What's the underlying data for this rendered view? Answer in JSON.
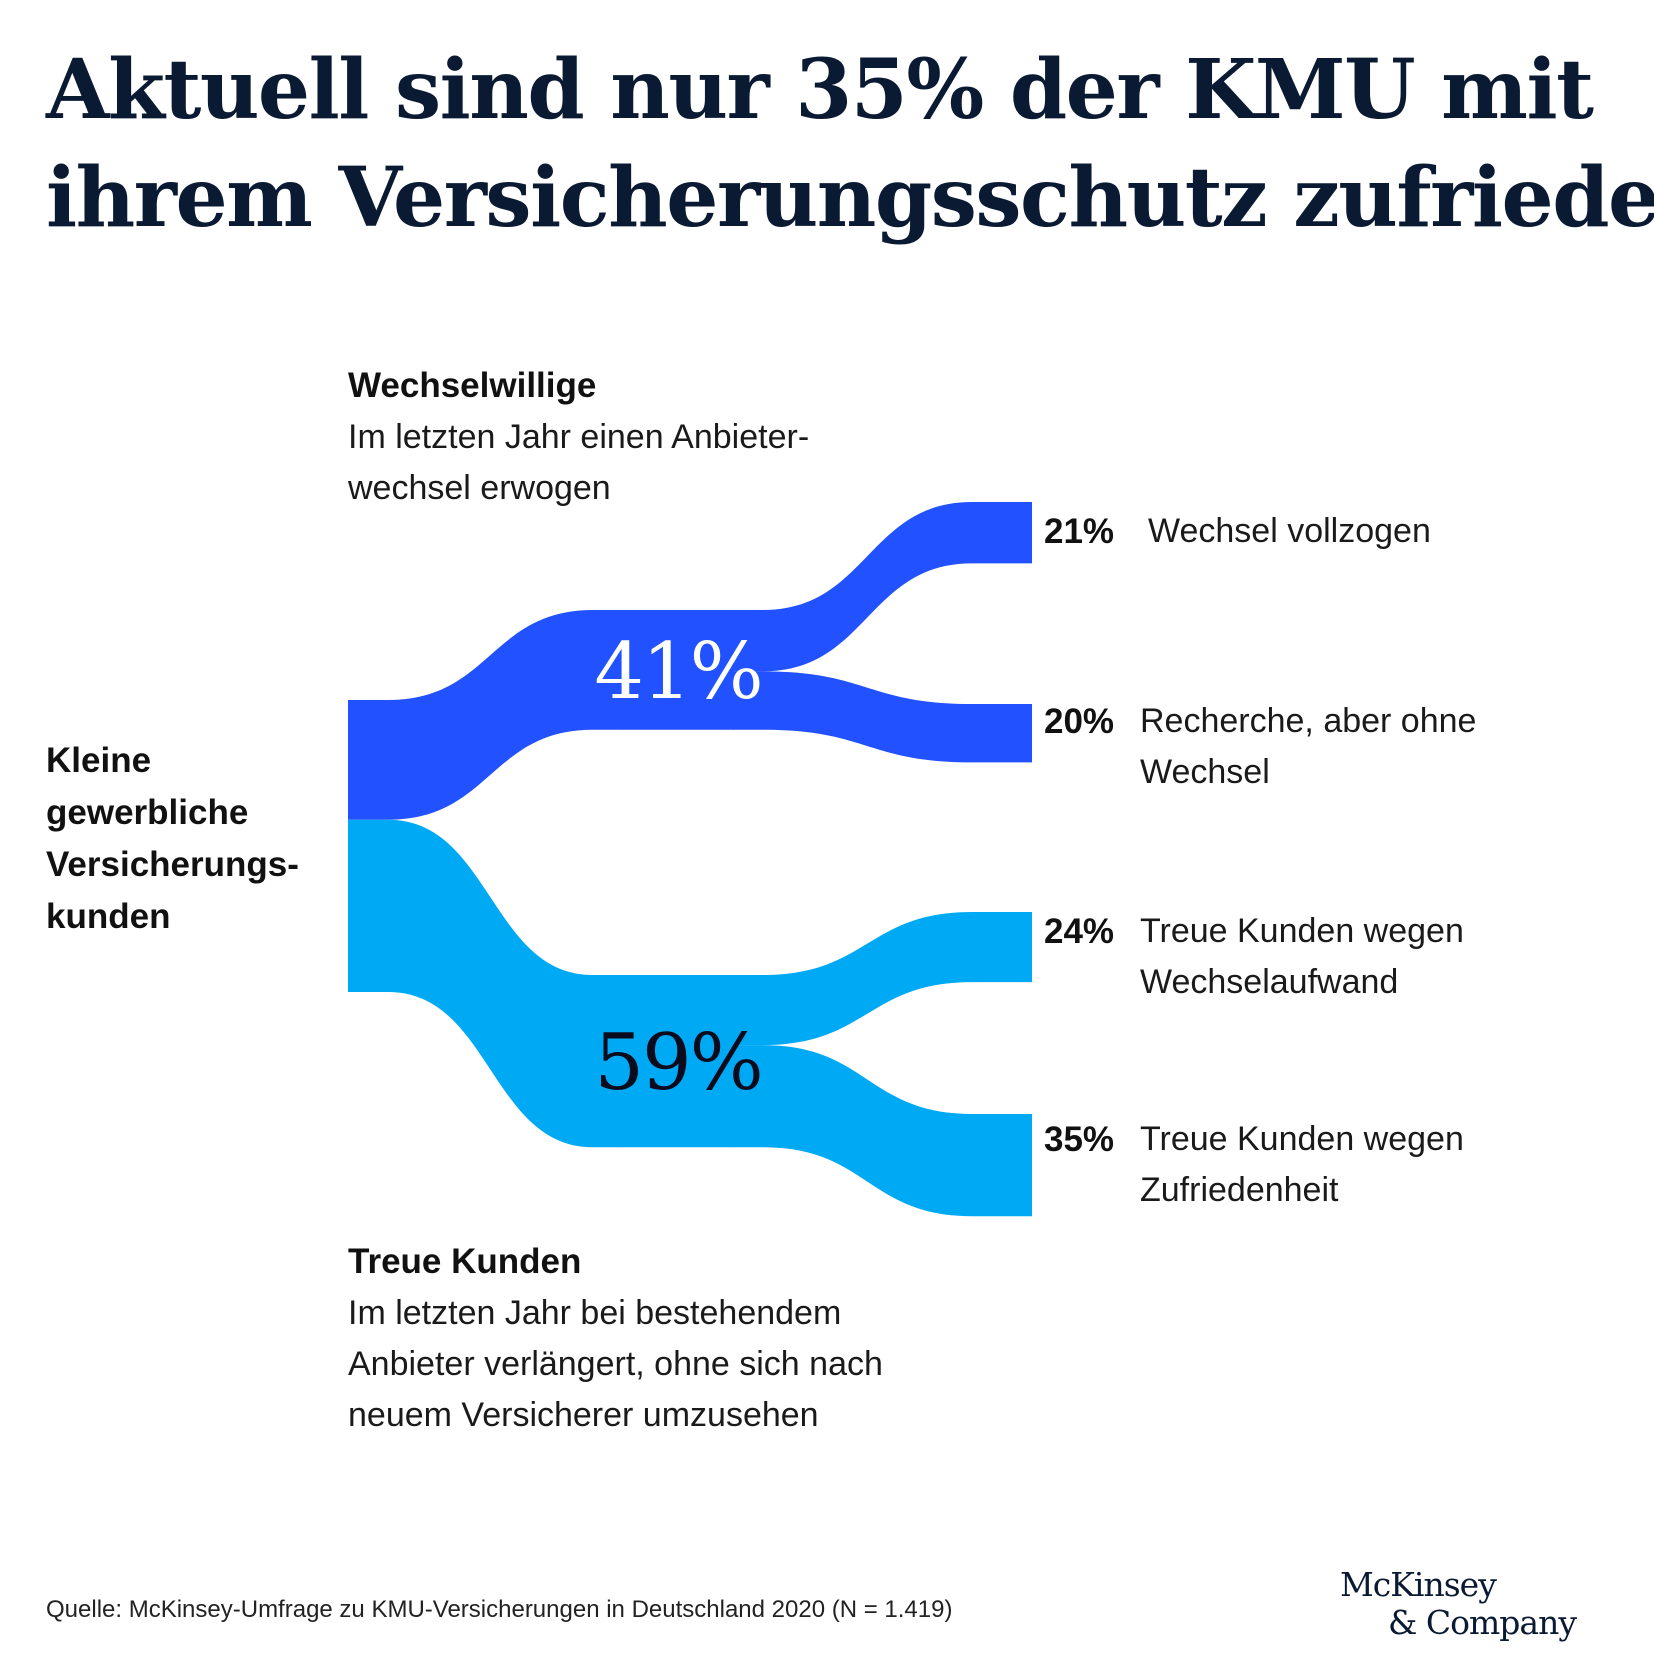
{
  "title": {
    "line1": "Aktuell sind nur 35% der KMU mit",
    "line2": "ihrem Versicherungsschutz zufrieden"
  },
  "root_label": "Kleine\ngewerbliche\nVersicherungs-\nkunden",
  "groups": {
    "switchers": {
      "head": "Wechselwillige",
      "desc": "Im letzten Jahr einen Anbieter-\nwechsel erwogen"
    },
    "loyal": {
      "head": "Treue Kunden",
      "desc": "Im letzten Jahr bei bestehendem\nAnbieter verlängert, ohne sich nach\nneuem Versicherer umzusehen"
    }
  },
  "outcomes": [
    {
      "pct": "21%",
      "label": "Wechsel vollzogen"
    },
    {
      "pct": "20%",
      "label": "Recherche, aber ohne\nWechsel"
    },
    {
      "pct": "24%",
      "label": "Treue Kunden wegen\nWechselaufwand"
    },
    {
      "pct": "35%",
      "label": "Treue Kunden wegen\nZufriedenheit"
    }
  ],
  "chart_data": {
    "type": "sankey",
    "nodes": [
      {
        "id": "root",
        "label": "Kleine gewerbliche Versicherungskunden"
      },
      {
        "id": "switchers",
        "label": "Wechselwillige",
        "value": 41,
        "value_label": "41%"
      },
      {
        "id": "loyal",
        "label": "Treue Kunden",
        "value": 59,
        "value_label": "59%"
      },
      {
        "id": "switched",
        "label": "Wechsel vollzogen",
        "value": 21
      },
      {
        "id": "researched",
        "label": "Recherche, aber ohne Wechsel",
        "value": 20
      },
      {
        "id": "effort",
        "label": "Treue Kunden wegen Wechselaufwand",
        "value": 24
      },
      {
        "id": "satisfied",
        "label": "Treue Kunden wegen Zufriedenheit",
        "value": 35
      }
    ],
    "links": [
      {
        "source": "root",
        "target": "switchers",
        "value": 41
      },
      {
        "source": "root",
        "target": "loyal",
        "value": 59
      },
      {
        "source": "switchers",
        "target": "switched",
        "value": 21
      },
      {
        "source": "switchers",
        "target": "researched",
        "value": 20
      },
      {
        "source": "loyal",
        "target": "effort",
        "value": 24
      },
      {
        "source": "loyal",
        "target": "satisfied",
        "value": 35
      }
    ],
    "colors": {
      "switchers": "#2251ff",
      "loyal": "#00a9f4"
    }
  },
  "footer": {
    "source": "Quelle: McKinsey-Umfrage zu KMU-Versicherungen in Deutschland 2020 (N = 1.419)",
    "logo_line1": "McKinsey",
    "logo_line2": "& Company"
  }
}
